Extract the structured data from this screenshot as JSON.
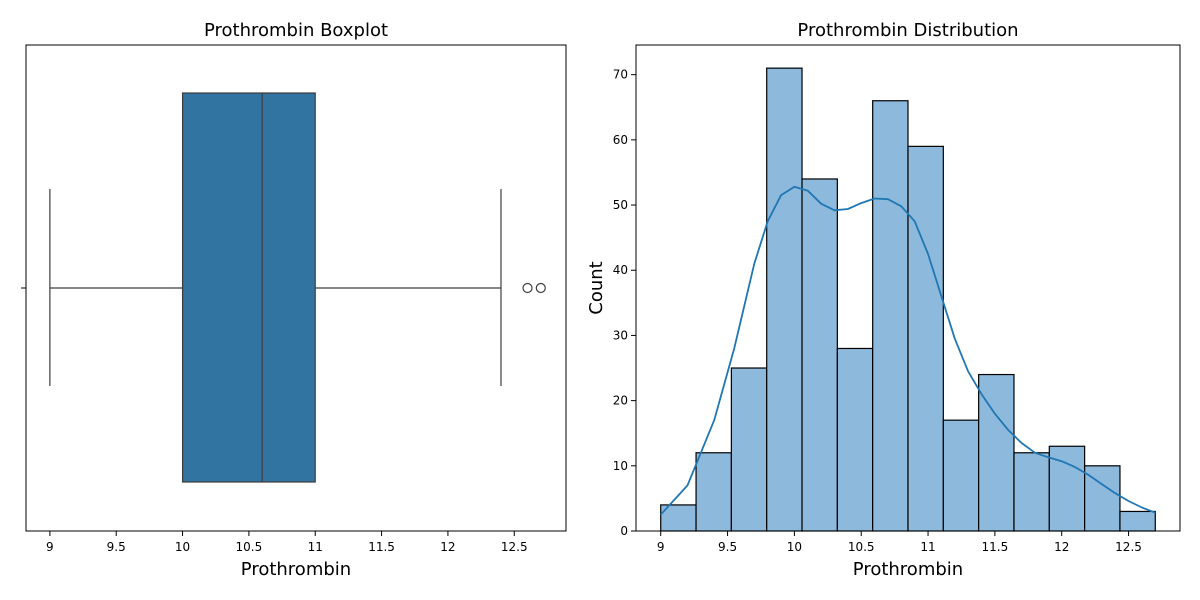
{
  "chart_data": [
    {
      "type": "box",
      "title": "Prothrombin Boxplot",
      "xlabel": "Prothrombin",
      "ylabel": "",
      "xlim": [
        8.82,
        12.89
      ],
      "xticks": [
        9.0,
        9.5,
        10.0,
        10.5,
        11.0,
        11.5,
        12.0,
        12.5
      ],
      "stats": {
        "whisker_low": 9.0,
        "q1": 10.0,
        "median": 10.6,
        "q3": 11.0,
        "whisker_high": 12.4,
        "outliers": [
          12.6,
          12.7
        ]
      },
      "colors": {
        "box": "#3274a1",
        "line": "#3d3d3d"
      }
    },
    {
      "type": "histogram",
      "title": "Prothrombin Distribution",
      "xlabel": "Prothrombin",
      "ylabel": "Count",
      "xlim": [
        8.815,
        12.885
      ],
      "ylim": [
        0,
        74.55
      ],
      "xticks": [
        9.0,
        9.5,
        10.0,
        10.5,
        11.0,
        11.5,
        12.0,
        12.5
      ],
      "yticks": [
        0,
        10,
        20,
        30,
        40,
        50,
        60,
        70
      ],
      "bin_start": 9.0,
      "bin_width": 0.26429,
      "counts": [
        4,
        12,
        25,
        71,
        54,
        28,
        66,
        59,
        17,
        24,
        12,
        13,
        10,
        3
      ],
      "kde": {
        "x": [
          9.0,
          9.2,
          9.4,
          9.55,
          9.7,
          9.8,
          9.9,
          10.0,
          10.1,
          10.2,
          10.3,
          10.4,
          10.5,
          10.6,
          10.7,
          10.8,
          10.9,
          11.0,
          11.1,
          11.2,
          11.3,
          11.4,
          11.5,
          11.6,
          11.7,
          11.8,
          11.9,
          12.0,
          12.1,
          12.2,
          12.3,
          12.4,
          12.5,
          12.6,
          12.7
        ],
        "y": [
          2.5,
          7,
          17,
          28,
          41,
          47.5,
          51.5,
          52.8,
          52.2,
          50.2,
          49.2,
          49.4,
          50.3,
          51,
          50.9,
          49.8,
          47.5,
          42.5,
          36,
          29.5,
          24.5,
          21,
          18,
          15.5,
          13.5,
          12,
          11.3,
          10.7,
          9.8,
          8.6,
          7.2,
          5.8,
          4.6,
          3.6,
          2.8
        ]
      },
      "colors": {
        "bar": "#8db9dc",
        "edge": "#000000",
        "kde": "#1f77b4"
      }
    }
  ]
}
